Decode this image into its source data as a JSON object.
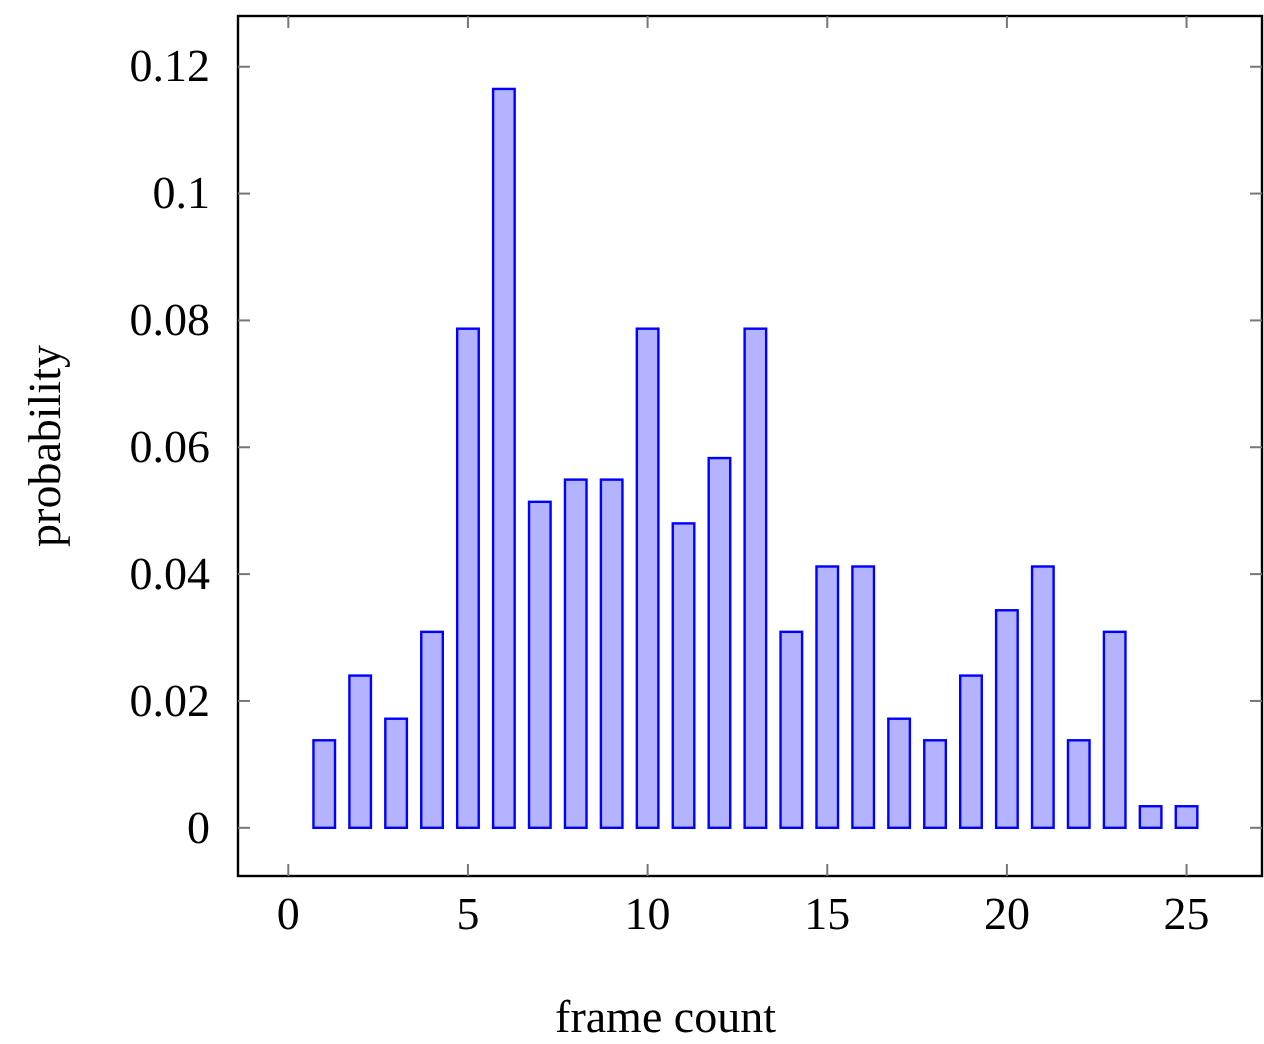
{
  "chart_data": {
    "type": "bar",
    "xlabel": "frame count",
    "ylabel": "probability",
    "x": [
      1,
      2,
      3,
      4,
      5,
      6,
      7,
      8,
      9,
      10,
      11,
      12,
      13,
      14,
      15,
      16,
      17,
      18,
      19,
      20,
      21,
      22,
      23,
      24,
      25
    ],
    "values": [
      0.0138,
      0.024,
      0.0172,
      0.0309,
      0.0787,
      0.1165,
      0.0514,
      0.0549,
      0.0549,
      0.0787,
      0.048,
      0.0583,
      0.0787,
      0.0309,
      0.0412,
      0.0412,
      0.0172,
      0.0138,
      0.024,
      0.0343,
      0.0412,
      0.0138,
      0.0309,
      0.0034,
      0.0034
    ],
    "color": "#b3b3ff",
    "xlim": [
      -1.4,
      27.1
    ],
    "ylim": [
      -0.0076,
      0.128
    ],
    "xticks": [
      0,
      5,
      10,
      15,
      20,
      25
    ],
    "yticks": [
      0,
      0.02,
      0.04,
      0.06,
      0.08,
      0.1,
      0.12
    ],
    "grid": false
  }
}
